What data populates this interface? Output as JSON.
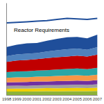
{
  "chart_data": {
    "type": "area",
    "categories": [
      "1998",
      "1999",
      "2000",
      "2001",
      "2002",
      "2003",
      "2004",
      "2005",
      "2006",
      "2007"
    ],
    "stacked": true,
    "grid": false,
    "tick_labels": "x",
    "ylim": [
      0,
      80000
    ],
    "yticks": [
      0,
      20000,
      40000,
      60000,
      80000
    ],
    "series": [
      {
        "color": "#8db33a",
        "values": [
          3000,
          3100,
          3000,
          3200,
          3300,
          3200,
          3300,
          3400,
          3300,
          3500
        ]
      },
      {
        "color": "#f0d000",
        "values": [
          2500,
          2500,
          2600,
          2600,
          2700,
          2700,
          2800,
          2800,
          2700,
          2900
        ]
      },
      {
        "color": "#a0a0a0",
        "values": [
          2500,
          2600,
          2500,
          2700,
          2600,
          2800,
          2700,
          2900,
          2800,
          3000
        ]
      },
      {
        "color": "#7030a0",
        "values": [
          3000,
          3000,
          3200,
          3300,
          3200,
          3400,
          3500,
          3500,
          3400,
          3600
        ]
      },
      {
        "color": "#f79646",
        "values": [
          4000,
          4200,
          4100,
          4300,
          4400,
          4500,
          4600,
          4700,
          4600,
          4800
        ]
      },
      {
        "color": "#2aa6a6",
        "values": [
          5000,
          5200,
          5400,
          5300,
          5500,
          5700,
          5800,
          5900,
          5800,
          6000
        ]
      },
      {
        "color": "#c00000",
        "values": [
          9000,
          9500,
          9800,
          10000,
          10500,
          10800,
          11000,
          11200,
          11000,
          11500
        ]
      },
      {
        "color": "#4f81bd",
        "values": [
          5000,
          5300,
          5500,
          5200,
          5800,
          6000,
          6300,
          6200,
          6000,
          6500
        ]
      },
      {
        "color": "#1f4e9a",
        "values": [
          8000,
          8500,
          9000,
          8800,
          9500,
          10000,
          10500,
          10200,
          10000,
          11000
        ]
      },
      {
        "name": "Reactor Requirements",
        "type": "line",
        "color": "#1f4e9a",
        "values": [
          63000,
          63500,
          64000,
          64500,
          65000,
          66000,
          67000,
          66500,
          66000,
          67000
        ]
      }
    ]
  }
}
